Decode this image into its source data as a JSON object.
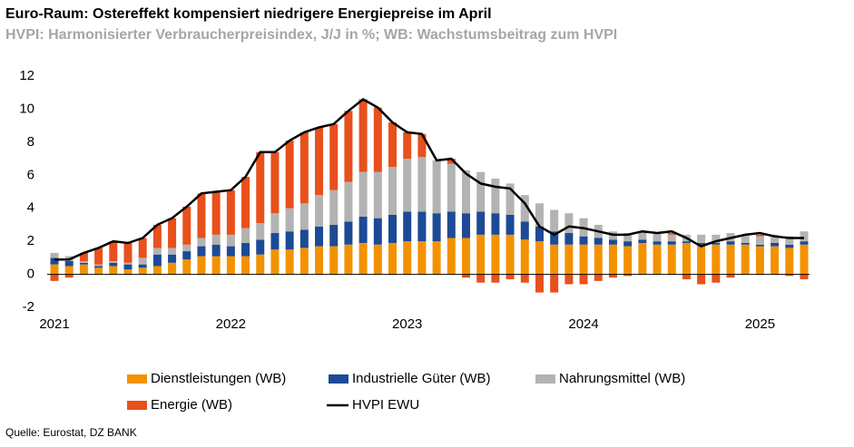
{
  "chart_data": {
    "type": "stacked-bar-line",
    "title": "Euro-Raum: Ostereffekt kompensiert niedrigere Energiepreise im April",
    "subtitle": "HVPI: Harmonisierter Verbraucherpreisindex, J/J in %; WB: Wachstumsbeitrag zum HVPI",
    "source": "Quelle: Eurostat, DZ BANK",
    "categories": [
      "2021",
      null,
      null,
      null,
      null,
      null,
      null,
      null,
      null,
      null,
      null,
      null,
      "2022",
      null,
      null,
      null,
      null,
      null,
      null,
      null,
      null,
      null,
      null,
      null,
      "2023",
      null,
      null,
      null,
      null,
      null,
      null,
      null,
      null,
      null,
      null,
      null,
      "2024",
      null,
      null,
      null,
      null,
      null,
      null,
      null,
      null,
      null,
      null,
      null,
      "2025",
      null,
      null,
      null
    ],
    "ylim": [
      -2,
      12
    ],
    "yticks": [
      -2,
      0,
      2,
      4,
      6,
      8,
      10,
      12
    ],
    "series": [
      {
        "name": "Dienstleistungen (WB)",
        "color": "#f39200",
        "kind": "bar",
        "values": [
          0.6,
          0.5,
          0.6,
          0.4,
          0.5,
          0.3,
          0.4,
          0.5,
          0.7,
          0.9,
          1.1,
          1.1,
          1.1,
          1.1,
          1.2,
          1.5,
          1.5,
          1.6,
          1.7,
          1.7,
          1.8,
          1.9,
          1.8,
          1.9,
          2.0,
          2.0,
          2.0,
          2.2,
          2.2,
          2.4,
          2.4,
          2.4,
          2.1,
          2.0,
          1.8,
          1.8,
          1.8,
          1.8,
          1.8,
          1.7,
          1.9,
          1.8,
          1.8,
          1.9,
          1.8,
          1.8,
          1.8,
          1.8,
          1.7,
          1.7,
          1.6,
          1.8
        ]
      },
      {
        "name": "Industrielle Güter (WB)",
        "color": "#1c4a96",
        "kind": "bar",
        "values": [
          0.4,
          0.3,
          0.1,
          0.1,
          0.2,
          0.3,
          0.2,
          0.7,
          0.5,
          0.5,
          0.6,
          0.7,
          0.6,
          0.8,
          0.9,
          1.0,
          1.1,
          1.1,
          1.2,
          1.3,
          1.4,
          1.6,
          1.6,
          1.7,
          1.8,
          1.8,
          1.7,
          1.6,
          1.5,
          1.4,
          1.3,
          1.2,
          1.1,
          0.9,
          0.8,
          0.7,
          0.5,
          0.4,
          0.3,
          0.3,
          0.2,
          0.2,
          0.2,
          0.1,
          0.1,
          0.1,
          0.2,
          0.1,
          0.1,
          0.2,
          0.2,
          0.2
        ]
      },
      {
        "name": "Nahrungsmittel (WB)",
        "color": "#b3b3b3",
        "kind": "bar",
        "values": [
          0.3,
          0.3,
          0.1,
          0.1,
          0.1,
          0.1,
          0.4,
          0.4,
          0.4,
          0.4,
          0.5,
          0.6,
          0.7,
          0.9,
          1.0,
          1.2,
          1.4,
          1.6,
          1.9,
          2.1,
          2.4,
          2.7,
          2.8,
          2.9,
          3.2,
          3.3,
          3.2,
          2.9,
          2.6,
          2.4,
          2.1,
          1.9,
          1.6,
          1.4,
          1.3,
          1.2,
          1.1,
          0.8,
          0.5,
          0.5,
          0.5,
          0.5,
          0.4,
          0.4,
          0.5,
          0.5,
          0.5,
          0.5,
          0.5,
          0.5,
          0.5,
          0.6
        ]
      },
      {
        "name": "Energie (WB)",
        "color": "#e8501c",
        "kind": "bar",
        "values": [
          -0.4,
          -0.2,
          0.5,
          1.0,
          1.2,
          1.2,
          1.2,
          1.4,
          1.8,
          2.3,
          2.7,
          2.6,
          2.7,
          3.1,
          4.3,
          3.7,
          4.1,
          4.3,
          4.1,
          4.0,
          4.3,
          4.4,
          3.9,
          2.7,
          1.6,
          1.4,
          0.0,
          0.3,
          -0.2,
          -0.5,
          -0.5,
          -0.3,
          -0.5,
          -1.1,
          -1.1,
          -0.6,
          -0.6,
          -0.4,
          -0.2,
          -0.1,
          0.0,
          0.0,
          0.1,
          -0.3,
          -0.6,
          -0.5,
          -0.2,
          0.0,
          0.1,
          0.0,
          -0.1,
          -0.3
        ]
      },
      {
        "name": "HVPI EWU",
        "color": "#000000",
        "kind": "line",
        "values": [
          0.9,
          0.9,
          1.3,
          1.6,
          2.0,
          1.9,
          2.2,
          3.0,
          3.4,
          4.1,
          4.9,
          5.0,
          5.1,
          5.9,
          7.4,
          7.4,
          8.1,
          8.6,
          8.9,
          9.1,
          9.9,
          10.6,
          10.1,
          9.2,
          8.6,
          8.5,
          6.9,
          7.0,
          6.1,
          5.5,
          5.3,
          5.2,
          4.3,
          2.9,
          2.4,
          2.9,
          2.8,
          2.6,
          2.4,
          2.4,
          2.6,
          2.5,
          2.6,
          2.2,
          1.7,
          2.0,
          2.2,
          2.4,
          2.5,
          2.3,
          2.2,
          2.2
        ]
      }
    ]
  }
}
